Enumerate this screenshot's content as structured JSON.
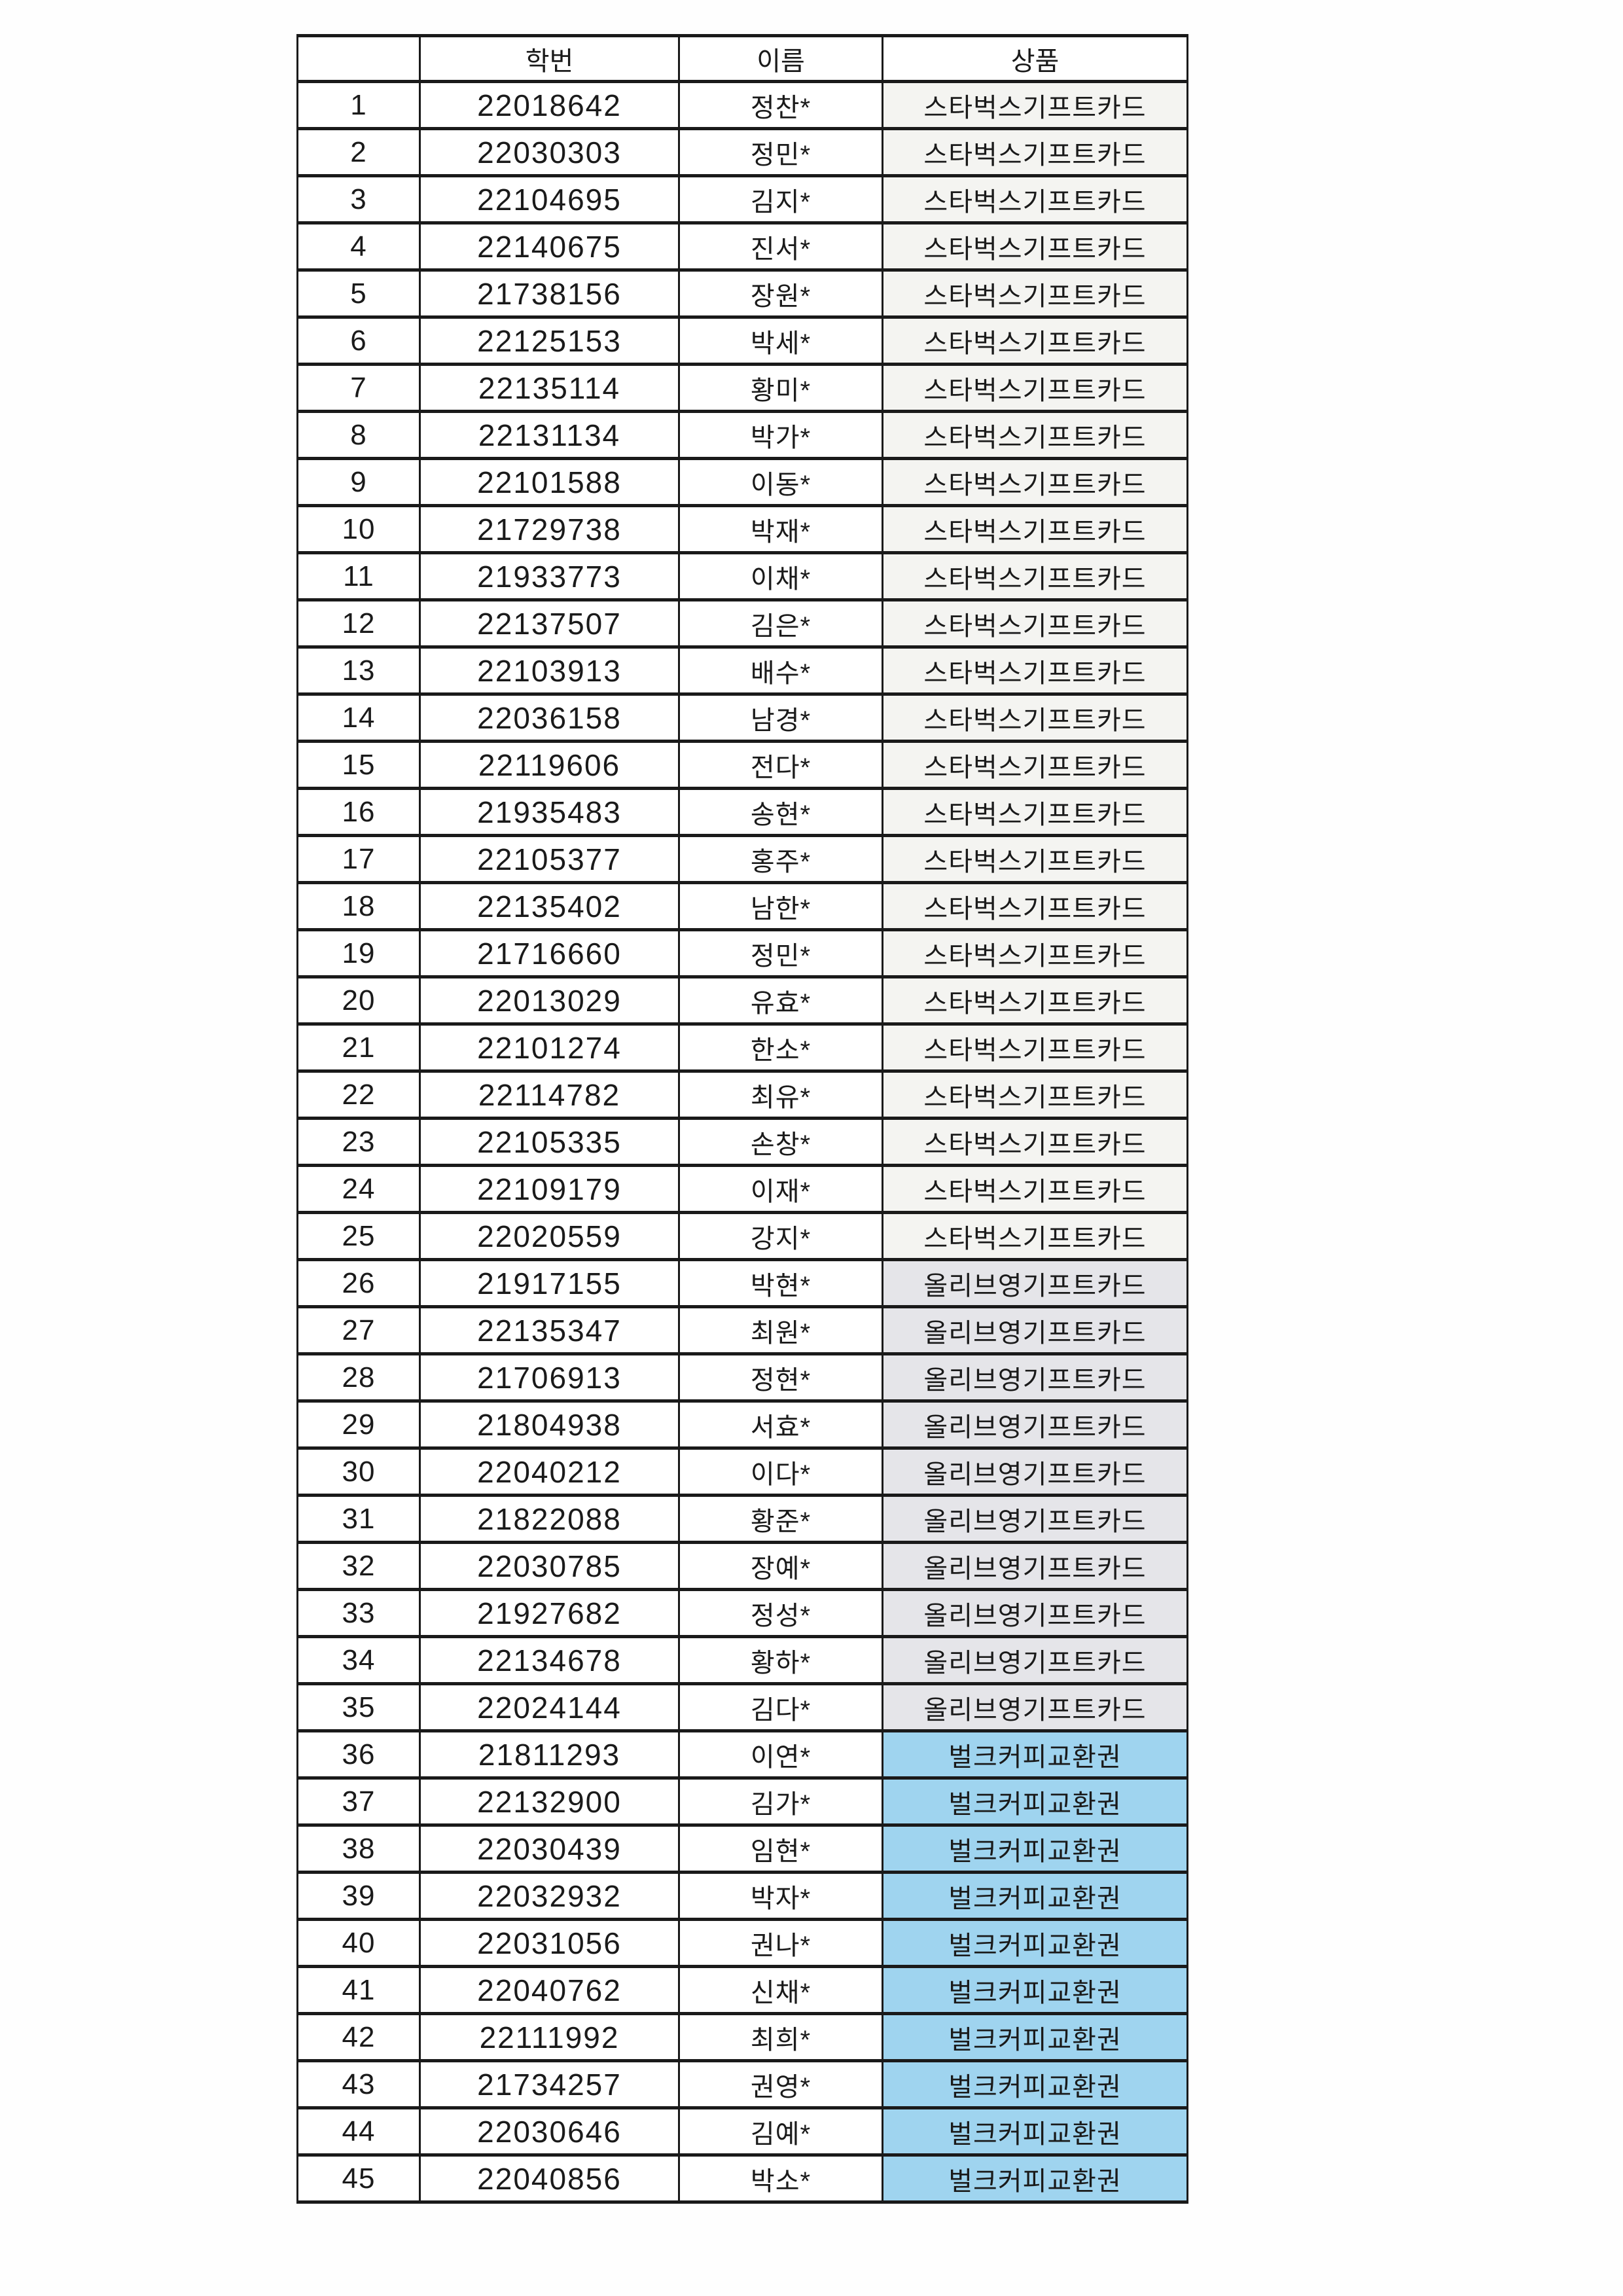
{
  "colors": {
    "border": "#1a1a1a",
    "text": "#1a1a1a",
    "starbucks_bg": "#f4f4f1",
    "oliveyoung_bg": "#e5e5e9",
    "coffee_bg": "#9fd4ef",
    "plain_bg": "#ffffff"
  },
  "table": {
    "headers": [
      "",
      "학번",
      "이름",
      "상품"
    ],
    "rows": [
      {
        "no": "1",
        "id": "22018642",
        "name": "정찬*",
        "prize": "스타벅스기프트카드",
        "type": "starbucks"
      },
      {
        "no": "2",
        "id": "22030303",
        "name": "정민*",
        "prize": "스타벅스기프트카드",
        "type": "starbucks"
      },
      {
        "no": "3",
        "id": "22104695",
        "name": "김지*",
        "prize": "스타벅스기프트카드",
        "type": "starbucks"
      },
      {
        "no": "4",
        "id": "22140675",
        "name": "진서*",
        "prize": "스타벅스기프트카드",
        "type": "starbucks"
      },
      {
        "no": "5",
        "id": "21738156",
        "name": "장원*",
        "prize": "스타벅스기프트카드",
        "type": "starbucks"
      },
      {
        "no": "6",
        "id": "22125153",
        "name": "박세*",
        "prize": "스타벅스기프트카드",
        "type": "starbucks"
      },
      {
        "no": "7",
        "id": "22135114",
        "name": "황미*",
        "prize": "스타벅스기프트카드",
        "type": "starbucks"
      },
      {
        "no": "8",
        "id": "22131134",
        "name": "박가*",
        "prize": "스타벅스기프트카드",
        "type": "starbucks"
      },
      {
        "no": "9",
        "id": "22101588",
        "name": "이동*",
        "prize": "스타벅스기프트카드",
        "type": "starbucks"
      },
      {
        "no": "10",
        "id": "21729738",
        "name": "박재*",
        "prize": "스타벅스기프트카드",
        "type": "starbucks"
      },
      {
        "no": "11",
        "id": "21933773",
        "name": "이채*",
        "prize": "스타벅스기프트카드",
        "type": "starbucks"
      },
      {
        "no": "12",
        "id": "22137507",
        "name": "김은*",
        "prize": "스타벅스기프트카드",
        "type": "starbucks"
      },
      {
        "no": "13",
        "id": "22103913",
        "name": "배수*",
        "prize": "스타벅스기프트카드",
        "type": "starbucks"
      },
      {
        "no": "14",
        "id": "22036158",
        "name": "남경*",
        "prize": "스타벅스기프트카드",
        "type": "starbucks"
      },
      {
        "no": "15",
        "id": "22119606",
        "name": "전다*",
        "prize": "스타벅스기프트카드",
        "type": "starbucks"
      },
      {
        "no": "16",
        "id": "21935483",
        "name": "송현*",
        "prize": "스타벅스기프트카드",
        "type": "starbucks"
      },
      {
        "no": "17",
        "id": "22105377",
        "name": "홍주*",
        "prize": "스타벅스기프트카드",
        "type": "starbucks"
      },
      {
        "no": "18",
        "id": "22135402",
        "name": "남한*",
        "prize": "스타벅스기프트카드",
        "type": "starbucks"
      },
      {
        "no": "19",
        "id": "21716660",
        "name": "정민*",
        "prize": "스타벅스기프트카드",
        "type": "starbucks"
      },
      {
        "no": "20",
        "id": "22013029",
        "name": "유효*",
        "prize": "스타벅스기프트카드",
        "type": "starbucks"
      },
      {
        "no": "21",
        "id": "22101274",
        "name": "한소*",
        "prize": "스타벅스기프트카드",
        "type": "starbucks"
      },
      {
        "no": "22",
        "id": "22114782",
        "name": "최유*",
        "prize": "스타벅스기프트카드",
        "type": "starbucks"
      },
      {
        "no": "23",
        "id": "22105335",
        "name": "손창*",
        "prize": "스타벅스기프트카드",
        "type": "starbucks"
      },
      {
        "no": "24",
        "id": "22109179",
        "name": "이재*",
        "prize": "스타벅스기프트카드",
        "type": "starbucks"
      },
      {
        "no": "25",
        "id": "22020559",
        "name": "강지*",
        "prize": "스타벅스기프트카드",
        "type": "starbucks"
      },
      {
        "no": "26",
        "id": "21917155",
        "name": "박현*",
        "prize": "올리브영기프트카드",
        "type": "oliveyoung"
      },
      {
        "no": "27",
        "id": "22135347",
        "name": "최원*",
        "prize": "올리브영기프트카드",
        "type": "oliveyoung"
      },
      {
        "no": "28",
        "id": "21706913",
        "name": "정현*",
        "prize": "올리브영기프트카드",
        "type": "oliveyoung"
      },
      {
        "no": "29",
        "id": "21804938",
        "name": "서효*",
        "prize": "올리브영기프트카드",
        "type": "oliveyoung"
      },
      {
        "no": "30",
        "id": "22040212",
        "name": "이다*",
        "prize": "올리브영기프트카드",
        "type": "oliveyoung"
      },
      {
        "no": "31",
        "id": "21822088",
        "name": "황준*",
        "prize": "올리브영기프트카드",
        "type": "oliveyoung"
      },
      {
        "no": "32",
        "id": "22030785",
        "name": "장예*",
        "prize": "올리브영기프트카드",
        "type": "oliveyoung"
      },
      {
        "no": "33",
        "id": "21927682",
        "name": "정성*",
        "prize": "올리브영기프트카드",
        "type": "oliveyoung"
      },
      {
        "no": "34",
        "id": "22134678",
        "name": "황하*",
        "prize": "올리브영기프트카드",
        "type": "oliveyoung"
      },
      {
        "no": "35",
        "id": "22024144",
        "name": "김다*",
        "prize": "올리브영기프트카드",
        "type": "oliveyoung"
      },
      {
        "no": "36",
        "id": "21811293",
        "name": "이연*",
        "prize": "벌크커피교환권",
        "type": "coffee"
      },
      {
        "no": "37",
        "id": "22132900",
        "name": "김가*",
        "prize": "벌크커피교환권",
        "type": "coffee"
      },
      {
        "no": "38",
        "id": "22030439",
        "name": "임현*",
        "prize": "벌크커피교환권",
        "type": "coffee"
      },
      {
        "no": "39",
        "id": "22032932",
        "name": "박자*",
        "prize": "벌크커피교환권",
        "type": "coffee"
      },
      {
        "no": "40",
        "id": "22031056",
        "name": "권나*",
        "prize": "벌크커피교환권",
        "type": "coffee"
      },
      {
        "no": "41",
        "id": "22040762",
        "name": "신채*",
        "prize": "벌크커피교환권",
        "type": "coffee"
      },
      {
        "no": "42",
        "id": "22111992",
        "name": "최희*",
        "prize": "벌크커피교환권",
        "type": "coffee"
      },
      {
        "no": "43",
        "id": "21734257",
        "name": "권영*",
        "prize": "벌크커피교환권",
        "type": "coffee"
      },
      {
        "no": "44",
        "id": "22030646",
        "name": "김예*",
        "prize": "벌크커피교환권",
        "type": "coffee"
      },
      {
        "no": "45",
        "id": "22040856",
        "name": "박소*",
        "prize": "벌크커피교환권",
        "type": "coffee"
      }
    ]
  }
}
